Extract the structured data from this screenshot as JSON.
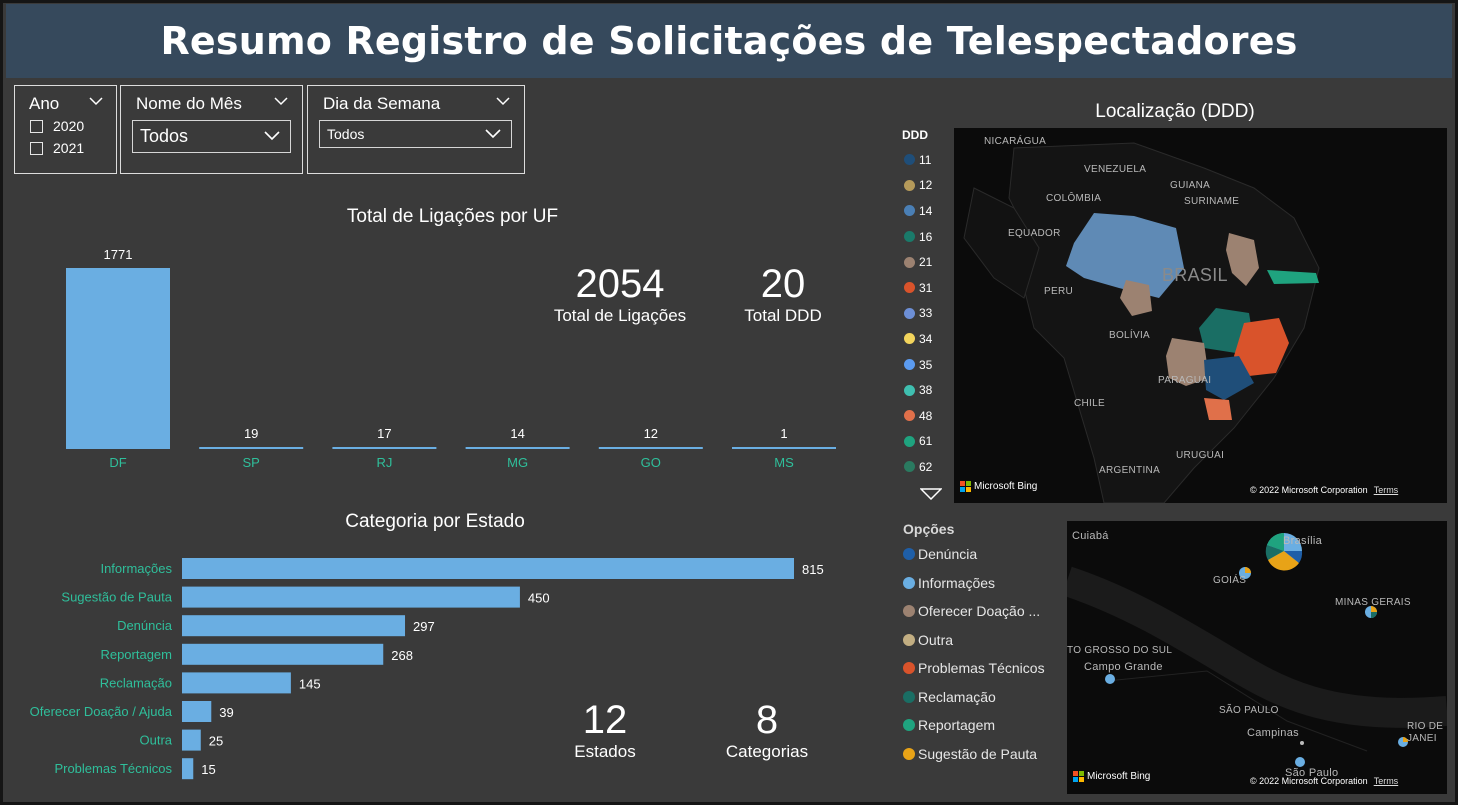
{
  "header": {
    "title": "Resumo Registro de Solicitações de Telespectadores"
  },
  "slicers": {
    "ano": {
      "label": "Ano",
      "options": [
        "2020",
        "2021"
      ]
    },
    "mes": {
      "label": "Nome do Mês",
      "value": "Todos"
    },
    "dia": {
      "label": "Dia da Semana",
      "value": "Todos"
    }
  },
  "uf_chart": {
    "title": "Total de Ligações por UF",
    "chart_data": {
      "type": "bar",
      "title": "Total de Ligações por UF",
      "categories": [
        "DF",
        "SP",
        "RJ",
        "MG",
        "GO",
        "MS"
      ],
      "values": [
        1771,
        19,
        17,
        14,
        12,
        1
      ],
      "bar_color": "#6aaee2",
      "label_color": "#2fbf9b"
    }
  },
  "kpis": {
    "total_ligacoes": {
      "value": "2054",
      "label": "Total de Ligações"
    },
    "total_ddd": {
      "value": "20",
      "label": "Total DDD"
    },
    "estados": {
      "value": "12",
      "label": "Estados"
    },
    "categorias": {
      "value": "8",
      "label": "Categorias"
    }
  },
  "cat_chart": {
    "title": "Categoria por Estado",
    "chart_data": {
      "type": "bar",
      "orientation": "horizontal",
      "title": "Categoria por Estado",
      "categories": [
        "Informações",
        "Sugestão de Pauta",
        "Denúncia",
        "Reportagem",
        "Reclamação",
        "Oferecer Doação / Ajuda",
        "Outra",
        "Problemas Técnicos"
      ],
      "values": [
        815,
        450,
        297,
        268,
        145,
        39,
        25,
        15
      ],
      "bar_color": "#6aaee2",
      "label_color": "#2fbf9b"
    }
  },
  "map_ddd": {
    "title": "Localização (DDD)",
    "legend_title": "DDD",
    "legend": [
      {
        "label": "11",
        "color": "#1f4e79"
      },
      {
        "label": "12",
        "color": "#b59a5a"
      },
      {
        "label": "14",
        "color": "#4a7fb5"
      },
      {
        "label": "16",
        "color": "#1a7a6a"
      },
      {
        "label": "21",
        "color": "#9c8271"
      },
      {
        "label": "31",
        "color": "#d9532b"
      },
      {
        "label": "33",
        "color": "#6d8fd6"
      },
      {
        "label": "34",
        "color": "#f2d45c"
      },
      {
        "label": "35",
        "color": "#5b9bf0"
      },
      {
        "label": "38",
        "color": "#3fbfb0"
      },
      {
        "label": "48",
        "color": "#e0704a"
      },
      {
        "label": "61",
        "color": "#1fa37f"
      },
      {
        "label": "62",
        "color": "#2a7a60"
      }
    ],
    "places": [
      "NICARÁGUA",
      "VENEZUELA",
      "GUIANA",
      "SURINAME",
      "COLÔMBIA",
      "EQUADOR",
      "BRASIL",
      "PERU",
      "BOLÍVIA",
      "PARAGUAI",
      "CHILE",
      "URUGUAI",
      "ARGENTINA"
    ],
    "bing": "Microsoft Bing",
    "copyright": "© 2022 Microsoft Corporation",
    "terms": "Terms"
  },
  "map_opcoes": {
    "legend_title": "Opções",
    "legend": [
      {
        "label": "Denúncia",
        "color": "#1f5fa8"
      },
      {
        "label": "Informações",
        "color": "#6aaee2"
      },
      {
        "label": "Oferecer Doação ...",
        "color": "#9c8271"
      },
      {
        "label": "Outra",
        "color": "#c2ae82"
      },
      {
        "label": "Problemas Técnicos",
        "color": "#d9532b"
      },
      {
        "label": "Reclamação",
        "color": "#1a6e64"
      },
      {
        "label": "Reportagem",
        "color": "#1fa37f"
      },
      {
        "label": "Sugestão de Pauta",
        "color": "#e8a317"
      }
    ],
    "places": [
      "Cuiabá",
      "Brasília",
      "GOIÁS",
      "MINAS GERAIS",
      "TO GROSSO DO SUL",
      "Campo Grande",
      "SÃO PAULO",
      "Campinas",
      "RIO DE JANEI",
      "São Paulo"
    ],
    "bing": "Microsoft Bing",
    "copyright": "© 2022 Microsoft Corporation",
    "terms": "Terms"
  }
}
